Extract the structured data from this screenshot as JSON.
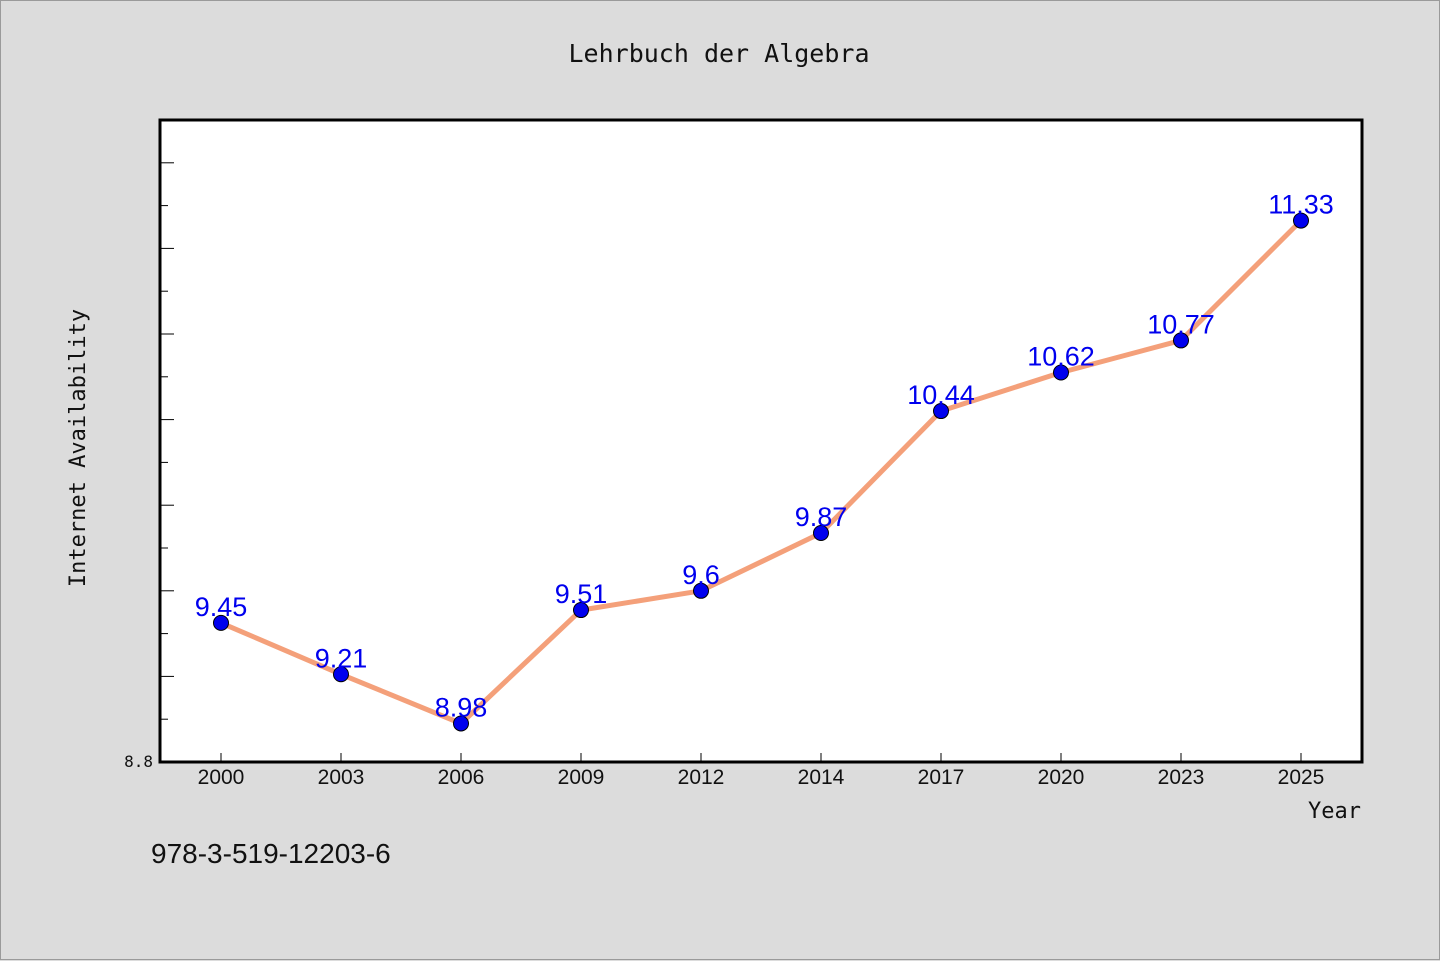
{
  "colors": {
    "background": "#dcdcdc",
    "plot_background": "#ffffff",
    "line": "#f4a07a",
    "marker": "#0000ee",
    "data_label": "#0000ee",
    "frame": "#000000"
  },
  "footer": {
    "isbn": "978-3-519-12203-6"
  },
  "chart_data": {
    "type": "line",
    "title": "Lehrbuch der Algebra",
    "xlabel": "Year",
    "ylabel": "Internet Availability",
    "categories": [
      "2000",
      "2003",
      "2006",
      "2009",
      "2012",
      "2014",
      "2017",
      "2020",
      "2023",
      "2025"
    ],
    "series": [
      {
        "values": [
          9.45,
          9.21,
          8.98,
          9.51,
          9.6,
          9.87,
          10.44,
          10.62,
          10.77,
          11.33
        ],
        "data_labels": [
          "9.45",
          "9.21",
          "8.98",
          "9.51",
          "9.6",
          "9.87",
          "10.44",
          "10.62",
          "10.77",
          "11.33"
        ]
      }
    ],
    "ylim": [
      8.8,
      11.8
    ],
    "y_tick_labels": [
      "8.8"
    ],
    "grid": false,
    "legend": "none"
  }
}
